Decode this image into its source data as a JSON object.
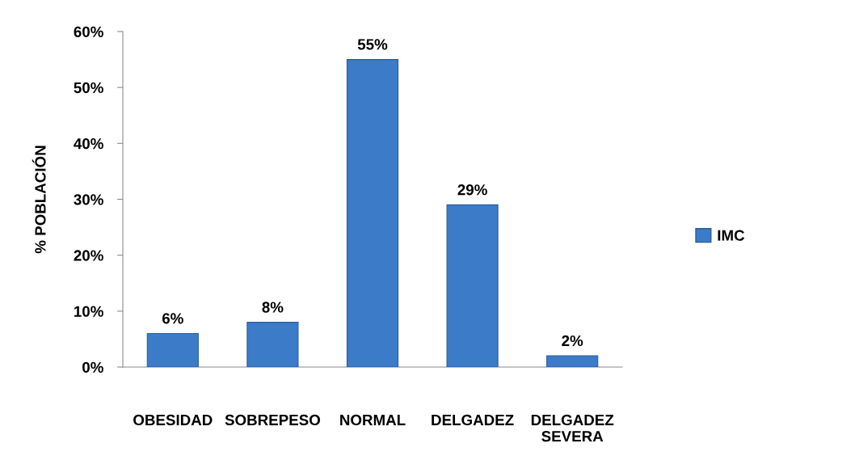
{
  "chart_data": {
    "type": "bar",
    "ylabel": "% POBLACIÓN",
    "categories": [
      "OBESIDAD",
      "SOBREPESO",
      "NORMAL",
      "DELGADEZ",
      "DELGADEZ\nSEVERA"
    ],
    "series": [
      {
        "name": "IMC",
        "color": "#3b7bc8",
        "values": [
          6,
          8,
          55,
          29,
          2
        ],
        "value_labels": [
          "6%",
          "8%",
          "55%",
          "29%",
          "2%"
        ]
      }
    ],
    "ylim": [
      0,
      60
    ],
    "yticks": [
      {
        "value": 0,
        "label": "0%"
      },
      {
        "value": 10,
        "label": "10%"
      },
      {
        "value": 20,
        "label": "20%"
      },
      {
        "value": 30,
        "label": "30%"
      },
      {
        "value": 40,
        "label": "40%"
      },
      {
        "value": 50,
        "label": "50%"
      },
      {
        "value": 60,
        "label": "60%"
      }
    ],
    "grid": false,
    "legend": "right"
  }
}
